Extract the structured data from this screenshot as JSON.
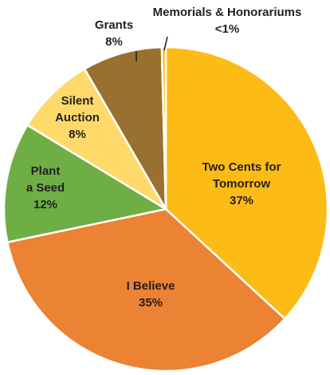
{
  "chart_data": {
    "type": "pie",
    "start_angle_deg": 0,
    "direction": "clockwise",
    "slices": [
      {
        "label": [
          "Two Cents for",
          "Tomorrow"
        ],
        "value_text": "37%",
        "value": 37,
        "color": "#fdbb16"
      },
      {
        "label": [
          "I Believe"
        ],
        "value_text": "35%",
        "value": 35,
        "color": "#ec8233"
      },
      {
        "label": [
          "Plant",
          "a Seed"
        ],
        "value_text": "12%",
        "value": 12,
        "color": "#6fae45"
      },
      {
        "label": [
          "Silent",
          "Auction"
        ],
        "value_text": "8%",
        "value": 8,
        "color": "#ffda6a"
      },
      {
        "label": [
          "Grants"
        ],
        "value_text": "8%",
        "value": 8,
        "color": "#987131"
      },
      {
        "label": [
          "Memorials & Honorariums"
        ],
        "value_text": "<1%",
        "value": 0.4,
        "color": "#fdbb16"
      }
    ]
  }
}
